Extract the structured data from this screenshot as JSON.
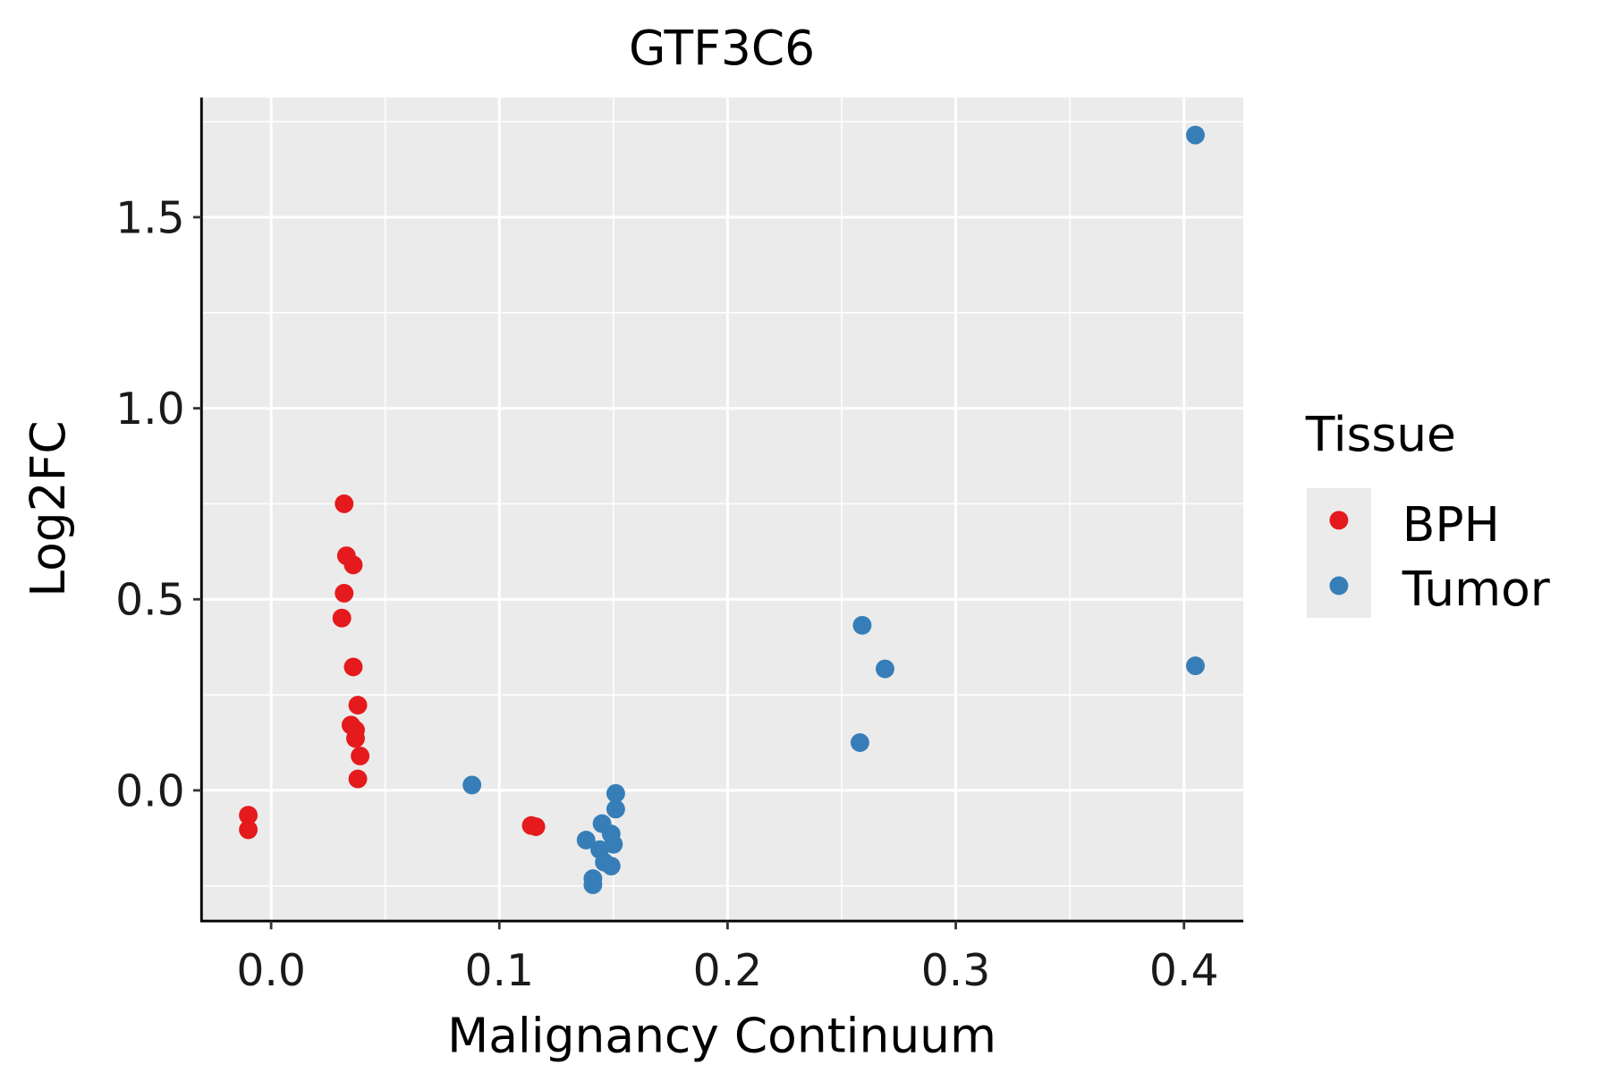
{
  "chart_data": {
    "type": "scatter",
    "title": "GTF3C6",
    "xlabel": "Malignancy Continuum",
    "ylabel": "Log2FC",
    "xlim": [
      -0.0305,
      0.426
    ],
    "ylim": [
      -0.342,
      1.813
    ],
    "xticks": [
      0.0,
      0.1,
      0.2,
      0.3,
      0.4
    ],
    "xtick_labels": [
      "0.0",
      "0.1",
      "0.2",
      "0.3",
      "0.4"
    ],
    "yticks": [
      0.0,
      0.5,
      1.0,
      1.5
    ],
    "ytick_labels": [
      "0.0",
      "0.5",
      "1.0",
      "1.5"
    ],
    "grid": true,
    "legend": {
      "title": "Tissue",
      "placement": "right"
    },
    "series": [
      {
        "name": "BPH",
        "color": "#E41A1C",
        "points": [
          [
            -0.01,
            -0.065
          ],
          [
            -0.01,
            -0.103
          ],
          [
            0.032,
            0.75
          ],
          [
            0.033,
            0.614
          ],
          [
            0.036,
            0.59
          ],
          [
            0.032,
            0.516
          ],
          [
            0.031,
            0.451
          ],
          [
            0.036,
            0.323
          ],
          [
            0.038,
            0.223
          ],
          [
            0.035,
            0.171
          ],
          [
            0.037,
            0.158
          ],
          [
            0.037,
            0.136
          ],
          [
            0.039,
            0.09
          ],
          [
            0.038,
            0.03
          ],
          [
            0.114,
            -0.092
          ],
          [
            0.116,
            -0.095
          ]
        ]
      },
      {
        "name": "Tumor",
        "color": "#377EB8",
        "points": [
          [
            0.405,
            1.715
          ],
          [
            0.405,
            0.326
          ],
          [
            0.259,
            0.432
          ],
          [
            0.269,
            0.318
          ],
          [
            0.258,
            0.125
          ],
          [
            0.088,
            0.014
          ],
          [
            0.151,
            -0.008
          ],
          [
            0.151,
            -0.049
          ],
          [
            0.145,
            -0.087
          ],
          [
            0.138,
            -0.13
          ],
          [
            0.149,
            -0.114
          ],
          [
            0.15,
            -0.141
          ],
          [
            0.144,
            -0.155
          ],
          [
            0.146,
            -0.188
          ],
          [
            0.149,
            -0.198
          ],
          [
            0.141,
            -0.231
          ],
          [
            0.141,
            -0.247
          ]
        ]
      }
    ]
  }
}
